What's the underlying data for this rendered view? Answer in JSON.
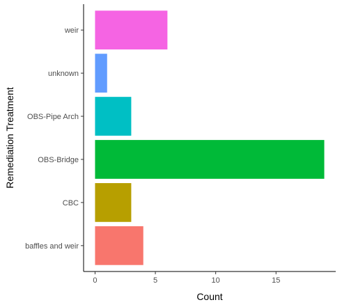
{
  "chart_data": {
    "type": "bar",
    "orientation": "horizontal",
    "categories": [
      "baffles and weir",
      "CBC",
      "OBS-Bridge",
      "OBS-Pipe Arch",
      "unknown",
      "weir"
    ],
    "values": [
      4,
      3,
      19,
      3,
      1,
      6
    ],
    "colors": [
      "#F8766D",
      "#B79F00",
      "#00BA38",
      "#00BFC4",
      "#619CFF",
      "#F564E3"
    ],
    "xlabel": "Count",
    "ylabel": "Remediation Treatment",
    "xlim": [
      -0.95,
      19.95
    ],
    "xticks": [
      0,
      5,
      10,
      15
    ],
    "grid": false,
    "legend": "none"
  }
}
